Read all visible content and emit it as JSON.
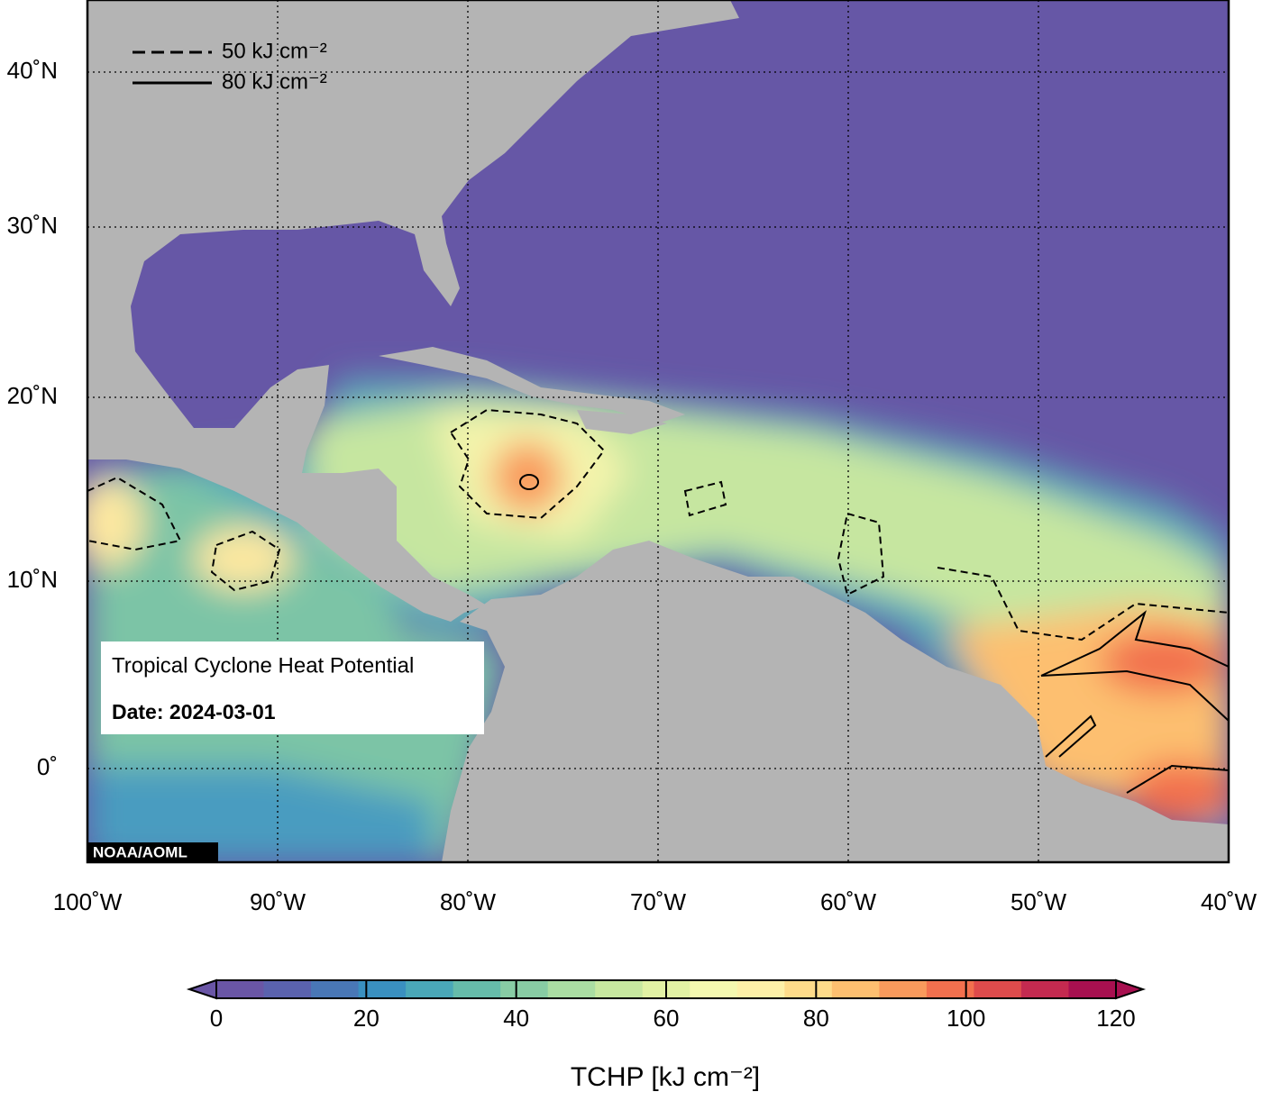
{
  "map": {
    "title": "Tropical Cyclone Heat Potential",
    "date": "Date: 2024-03-01",
    "credit": "NOAA/AOML",
    "legend": [
      {
        "label": "50 kJ cm⁻²",
        "style": "dashed"
      },
      {
        "label": "80 kJ cm⁻²",
        "style": "solid"
      }
    ],
    "lat_ticks": [
      {
        "value": 40,
        "label": "40˚N"
      },
      {
        "value": 30,
        "label": "30˚N"
      },
      {
        "value": 20,
        "label": "20˚N"
      },
      {
        "value": 10,
        "label": "10˚N"
      },
      {
        "value": 0,
        "label": "0˚"
      }
    ],
    "lon_ticks": [
      {
        "value": -100,
        "label": "100˚W"
      },
      {
        "value": -90,
        "label": "90˚W"
      },
      {
        "value": -80,
        "label": "80˚W"
      },
      {
        "value": -70,
        "label": "70˚W"
      },
      {
        "value": -60,
        "label": "60˚W"
      },
      {
        "value": -50,
        "label": "50˚W"
      },
      {
        "value": -40,
        "label": "40˚W"
      }
    ],
    "colorbar": {
      "label": "TCHP [kJ cm⁻²]",
      "lim": [
        0,
        120
      ],
      "ticks": [
        0,
        20,
        40,
        60,
        80,
        100,
        120
      ],
      "colors": [
        "#6a56a6",
        "#5a62ae",
        "#4977b6",
        "#3a90c0",
        "#4aa8b8",
        "#66bcaa",
        "#88cca4",
        "#aadda2",
        "#c8e8a0",
        "#e2f2a4",
        "#f4f8b0",
        "#fdf0a8",
        "#fedb8a",
        "#fdbf70",
        "#f99a5c",
        "#f2704e",
        "#de4b4c",
        "#c42a50",
        "#a81050"
      ]
    }
  }
}
